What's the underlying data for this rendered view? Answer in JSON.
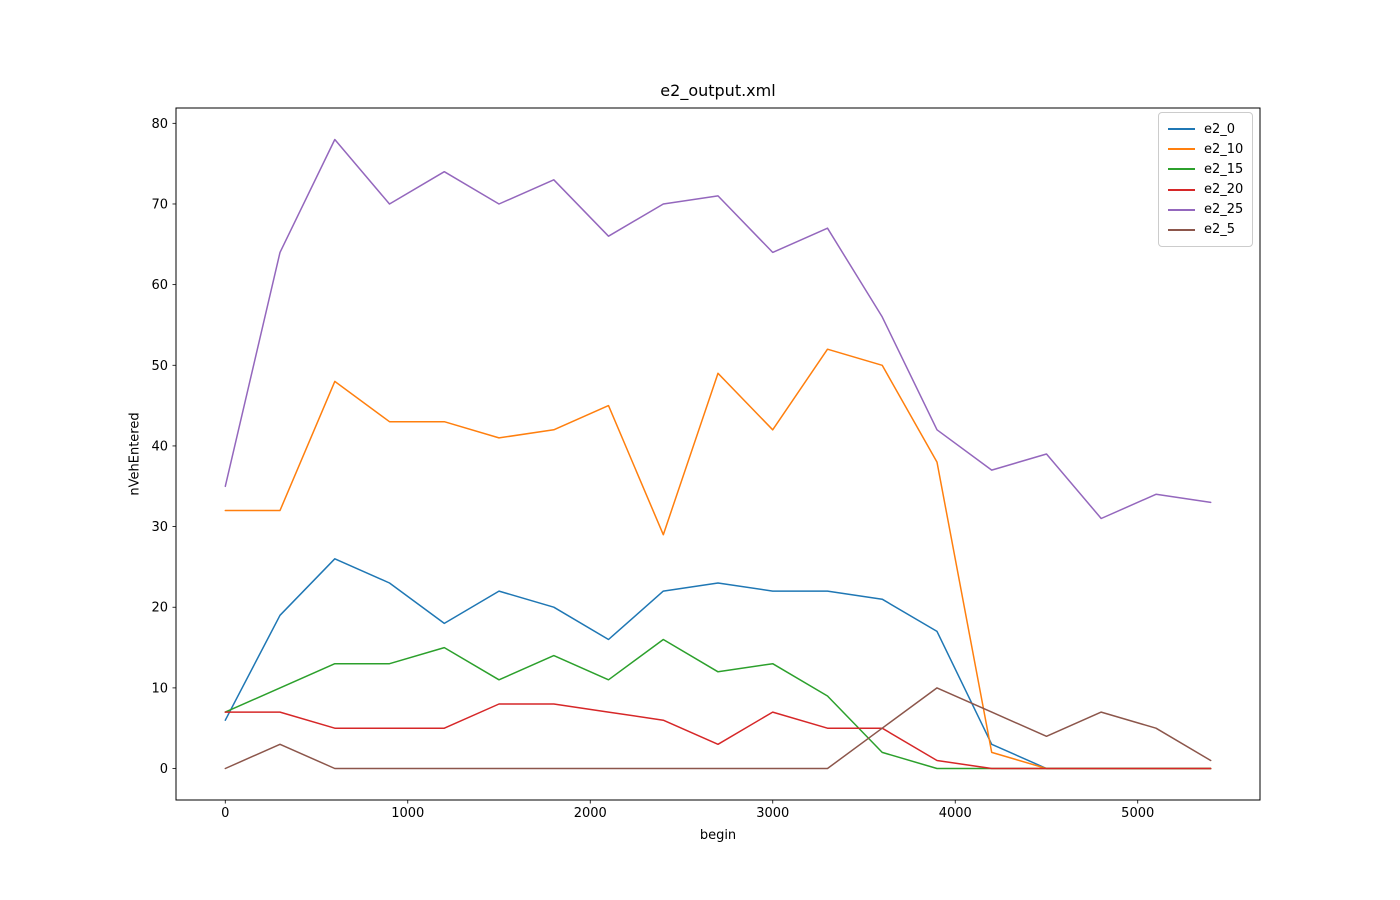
{
  "chart_data": {
    "type": "line",
    "title": "e2_output.xml",
    "xlabel": "begin",
    "ylabel": "nVehEntered",
    "grid": false,
    "legend_position": "upper right",
    "xlim": [
      -270,
      5670
    ],
    "ylim": [
      -3.9,
      81.9
    ],
    "xticks": [
      0,
      1000,
      2000,
      3000,
      4000,
      5000
    ],
    "yticks": [
      0,
      10,
      20,
      30,
      40,
      50,
      60,
      70,
      80
    ],
    "x": [
      0,
      300,
      600,
      900,
      1200,
      1500,
      1800,
      2100,
      2400,
      2700,
      3000,
      3300,
      3600,
      3900,
      4200,
      4500,
      4800,
      5100,
      5400
    ],
    "series": [
      {
        "name": "e2_0",
        "color": "#1f77b4",
        "values": [
          6,
          19,
          26,
          23,
          18,
          22,
          20,
          16,
          22,
          23,
          22,
          22,
          21,
          17,
          3,
          0,
          0,
          0,
          0
        ]
      },
      {
        "name": "e2_10",
        "color": "#ff7f0e",
        "values": [
          32,
          32,
          48,
          43,
          43,
          41,
          42,
          45,
          29,
          49,
          42,
          52,
          50,
          38,
          2,
          0,
          0,
          0,
          0
        ]
      },
      {
        "name": "e2_15",
        "color": "#2ca02c",
        "values": [
          7,
          10,
          13,
          13,
          15,
          11,
          14,
          11,
          16,
          12,
          13,
          9,
          2,
          0,
          0,
          0,
          0,
          0,
          0
        ]
      },
      {
        "name": "e2_20",
        "color": "#d62728",
        "values": [
          7,
          7,
          5,
          5,
          5,
          8,
          8,
          7,
          6,
          3,
          7,
          5,
          5,
          1,
          0,
          0,
          0,
          0,
          0
        ]
      },
      {
        "name": "e2_25",
        "color": "#9467bd",
        "values": [
          35,
          64,
          78,
          70,
          74,
          70,
          73,
          66,
          70,
          71,
          64,
          67,
          56,
          42,
          37,
          39,
          31,
          34,
          33
        ]
      },
      {
        "name": "e2_5",
        "color": "#8c564b",
        "values": [
          0,
          3,
          0,
          0,
          0,
          0,
          0,
          0,
          0,
          0,
          0,
          0,
          5,
          10,
          7,
          4,
          7,
          5,
          1
        ]
      }
    ]
  }
}
